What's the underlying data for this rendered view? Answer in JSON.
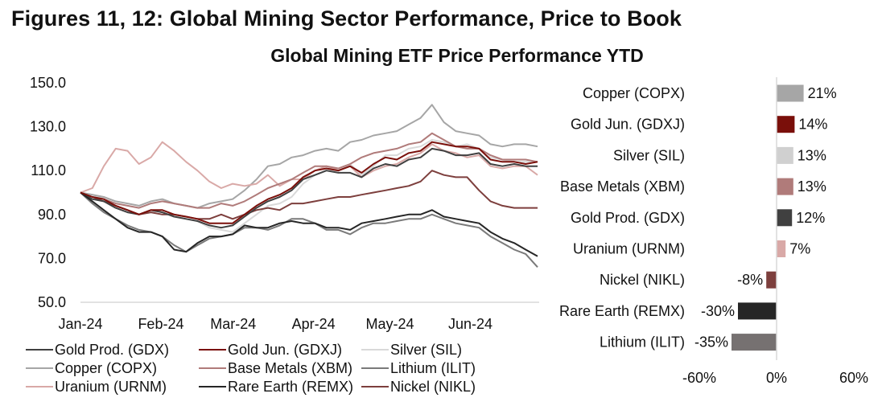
{
  "header": {
    "figure_title": "Figures 11, 12: Global Mining Sector Performance, Price to Book",
    "chart_title": "Global Mining ETF Price Performance YTD"
  },
  "chart_data": [
    {
      "type": "line",
      "title": "Global Mining ETF Price Performance YTD",
      "xlabel": "",
      "ylabel": "",
      "ylim": [
        50,
        150
      ],
      "yticks": [
        "150.0",
        "130.0",
        "110.0",
        "90.0",
        "70.0",
        "50.0"
      ],
      "ytick_values": [
        150,
        130,
        110,
        90,
        70,
        50
      ],
      "xticks": [
        "Jan-24",
        "Feb-24",
        "Mar-24",
        "Apr-24",
        "May-24",
        "Jun-24"
      ],
      "xtick_positions": [
        0,
        0.176,
        0.334,
        0.51,
        0.677,
        0.853
      ],
      "legend_position": "bottom",
      "x_description": "trading days Jan 2024 to end of Jun 2024, sampled, normalized 0-1",
      "x": [
        0,
        0.026,
        0.051,
        0.077,
        0.103,
        0.128,
        0.154,
        0.179,
        0.205,
        0.231,
        0.256,
        0.282,
        0.308,
        0.333,
        0.359,
        0.385,
        0.41,
        0.436,
        0.462,
        0.487,
        0.513,
        0.538,
        0.564,
        0.59,
        0.615,
        0.641,
        0.667,
        0.692,
        0.718,
        0.744,
        0.769,
        0.795,
        0.821,
        0.846,
        0.872,
        0.897,
        0.923,
        0.949,
        0.974,
        1
      ],
      "series": [
        {
          "name": "Gold Prod. (GDX)",
          "color": "#404040",
          "values": [
            100,
            97,
            96,
            93,
            91,
            90,
            92,
            91,
            89,
            88,
            87,
            85,
            84,
            85,
            89,
            93,
            96,
            98,
            101,
            106,
            108,
            110,
            109,
            109,
            107,
            111,
            113,
            112,
            115,
            116,
            120,
            119,
            117,
            117,
            118,
            113,
            112,
            113,
            112,
            112
          ]
        },
        {
          "name": "Gold Jun. (GDXJ)",
          "color": "#7a0f0a",
          "values": [
            100,
            98,
            97,
            94,
            92,
            90,
            92,
            92,
            90,
            89,
            88,
            86,
            86,
            86,
            90,
            94,
            97,
            99,
            102,
            107,
            110,
            111,
            110,
            112,
            109,
            113,
            116,
            115,
            118,
            119,
            123,
            122,
            121,
            121,
            120,
            115,
            114,
            114,
            113,
            114
          ]
        },
        {
          "name": "Silver (SIL)",
          "color": "#d9d9d9",
          "values": [
            100,
            99,
            97,
            94,
            92,
            90,
            91,
            92,
            90,
            88,
            87,
            84,
            83,
            82,
            86,
            90,
            94,
            95,
            98,
            104,
            108,
            110,
            110,
            113,
            108,
            112,
            117,
            117,
            120,
            121,
            124,
            123,
            121,
            122,
            120,
            116,
            115,
            114,
            114,
            114
          ]
        },
        {
          "name": "Copper (COPX)",
          "color": "#a6a6a6",
          "values": [
            100,
            99,
            98,
            96,
            95,
            94,
            96,
            97,
            95,
            94,
            93,
            95,
            96,
            97,
            101,
            106,
            112,
            113,
            116,
            117,
            119,
            120,
            119,
            123,
            124,
            126,
            127,
            128,
            131,
            134,
            140,
            132,
            128,
            127,
            126,
            122,
            121,
            122,
            122,
            121
          ]
        },
        {
          "name": "Base Metals (XBM)",
          "color": "#b07b7a",
          "values": [
            100,
            98,
            97,
            95,
            94,
            93,
            95,
            96,
            95,
            94,
            93,
            93,
            95,
            94,
            96,
            99,
            102,
            104,
            106,
            109,
            112,
            112,
            111,
            113,
            116,
            118,
            119,
            120,
            122,
            123,
            127,
            124,
            121,
            120,
            120,
            117,
            115,
            115,
            115,
            114
          ]
        },
        {
          "name": "Lithium (ILIT)",
          "color": "#7a7a7a",
          "values": [
            100,
            95,
            91,
            88,
            85,
            83,
            82,
            80,
            76,
            73,
            76,
            79,
            80,
            81,
            84,
            84,
            83,
            85,
            88,
            88,
            86,
            83,
            83,
            81,
            84,
            86,
            86,
            87,
            88,
            88,
            90,
            88,
            86,
            85,
            84,
            80,
            77,
            74,
            72,
            66
          ]
        },
        {
          "name": "Uranium (URNM)",
          "color": "#d9a9a7",
          "values": [
            100,
            102,
            112,
            120,
            119,
            113,
            116,
            123,
            119,
            114,
            110,
            105,
            102,
            104,
            103,
            104,
            108,
            103,
            106,
            106,
            110,
            112,
            110,
            112,
            107,
            110,
            112,
            113,
            116,
            118,
            122,
            119,
            118,
            116,
            117,
            112,
            111,
            112,
            112,
            108
          ]
        },
        {
          "name": "Rare Earth (REMX)",
          "color": "#262626",
          "values": [
            100,
            96,
            92,
            88,
            84,
            82,
            82,
            80,
            74,
            73,
            77,
            80,
            80,
            81,
            85,
            84,
            84,
            86,
            87,
            86,
            86,
            84,
            84,
            83,
            86,
            87,
            88,
            89,
            90,
            90,
            92,
            89,
            88,
            87,
            86,
            82,
            79,
            77,
            74,
            71
          ]
        },
        {
          "name": "Nickel (NIKL)",
          "color": "#7d3f3d",
          "values": [
            100,
            98,
            96,
            94,
            92,
            90,
            91,
            90,
            90,
            89,
            88,
            88,
            90,
            88,
            90,
            92,
            93,
            92,
            95,
            95,
            96,
            97,
            98,
            98,
            99,
            100,
            101,
            102,
            103,
            105,
            110,
            108,
            107,
            107,
            101,
            96,
            94,
            93,
            93,
            93
          ]
        }
      ]
    },
    {
      "type": "bar",
      "orientation": "horizontal",
      "title": "",
      "categories": [
        "Copper (COPX)",
        "Gold Jun. (GDXJ)",
        "Silver (SIL)",
        "Base Metals (XBM)",
        "Gold Prod. (GDX)",
        "Uranium (URNM)",
        "Nickel (NIKL)",
        "Rare Earth (REMX)",
        "Lithium (ILIT)"
      ],
      "values": [
        21,
        14,
        13,
        13,
        12,
        7,
        -8,
        -30,
        -35
      ],
      "value_labels": [
        "21%",
        "14%",
        "13%",
        "13%",
        "12%",
        "7%",
        "-8%",
        "-30%",
        "-35%"
      ],
      "colors": [
        "#a6a6a6",
        "#7a0f0a",
        "#d0d0d0",
        "#b07b7a",
        "#404040",
        "#d9a9a7",
        "#7d3f3d",
        "#262626",
        "#767171"
      ],
      "xlim": [
        -60,
        60
      ],
      "xticks": [
        "-60%",
        "0%",
        "60%"
      ],
      "xtick_values": [
        -60,
        0,
        60
      ]
    }
  ]
}
